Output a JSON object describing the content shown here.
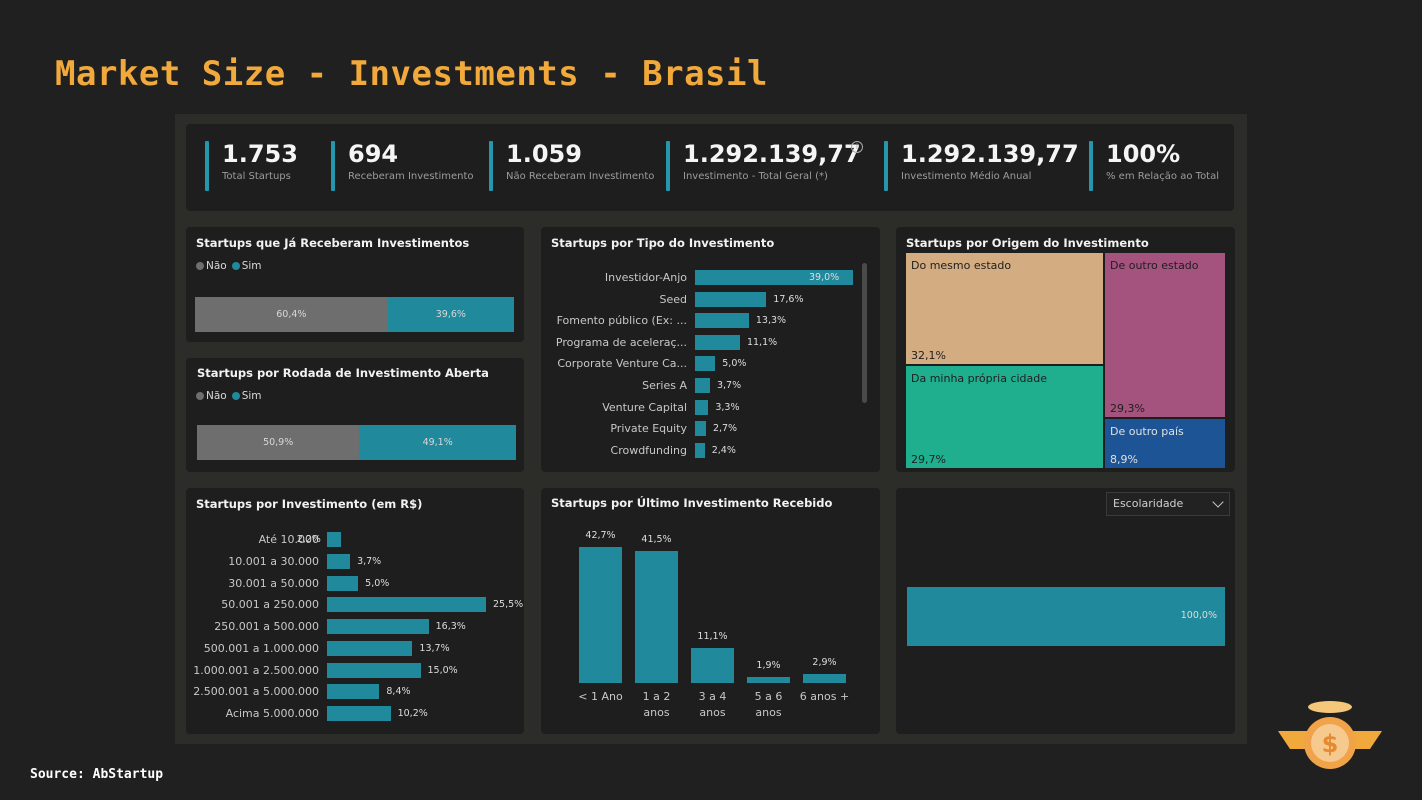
{
  "title": "Market Size - Investments - Brasil",
  "source": "Source: AbStartup",
  "colors": {
    "accent": "#20899c",
    "kpi_bar": "#2597ad",
    "title": "#f2a93b",
    "gray": "#6e6e6e"
  },
  "kpis": [
    {
      "value": "1.753",
      "label": "Total Startups"
    },
    {
      "value": "694",
      "label": "Receberam Investimento"
    },
    {
      "value": "1.059",
      "label": "Não Receberam Investimento"
    },
    {
      "value": "1.292.139,77",
      "label": "Investimento - Total Geral (*)",
      "info_icon": "i"
    },
    {
      "value": "1.292.139,77",
      "label": "Investimento Médio Anual"
    },
    {
      "value": "100%",
      "label": "% em Relação ao Total"
    }
  ],
  "received": {
    "title": "Startups que Já Receberam Investimentos",
    "legend": [
      "Não",
      "Sim"
    ],
    "segments": [
      {
        "label": "60,4%",
        "value": 60.4
      },
      {
        "label": "39,6%",
        "value": 39.6
      }
    ]
  },
  "open_round": {
    "title": "Startups por Rodada de Investimento Aberta",
    "legend": [
      "Não",
      "Sim"
    ],
    "segments": [
      {
        "label": "50,9%",
        "value": 50.9
      },
      {
        "label": "49,1%",
        "value": 49.1
      }
    ]
  },
  "type": {
    "title": "Startups por Tipo do Investimento",
    "rows": [
      {
        "label": "Investidor-Anjo",
        "value": 39.0,
        "display": "39,0%"
      },
      {
        "label": "Seed",
        "value": 17.6,
        "display": "17,6%"
      },
      {
        "label": "Fomento público (Ex: ...",
        "value": 13.3,
        "display": "13,3%"
      },
      {
        "label": "Programa de aceleraç...",
        "value": 11.1,
        "display": "11,1%"
      },
      {
        "label": "Corporate Venture Ca...",
        "value": 5.0,
        "display": "5,0%"
      },
      {
        "label": "Series A",
        "value": 3.7,
        "display": "3,7%"
      },
      {
        "label": "Venture Capital",
        "value": 3.3,
        "display": "3,3%"
      },
      {
        "label": "Private Equity",
        "value": 2.7,
        "display": "2,7%"
      },
      {
        "label": "Crowdfunding",
        "value": 2.4,
        "display": "2,4%"
      }
    ]
  },
  "origin": {
    "title": "Startups por Origem do Investimento",
    "tiles": [
      {
        "name": "Do mesmo estado",
        "value": "32,1%",
        "color": "#d4ac82"
      },
      {
        "name": "De outro estado",
        "value": "29,3%",
        "color": "#a3537e"
      },
      {
        "name": "Da minha própria cidade",
        "value": "29,7%",
        "color": "#1fae8e"
      },
      {
        "name": "De outro país",
        "value": "8,9%",
        "color": "#1c5496"
      }
    ]
  },
  "amount": {
    "title": "Startups por Investimento (em R$)",
    "rows": [
      {
        "label": "Até 10.000",
        "value": 2.2,
        "display": "2,2%"
      },
      {
        "label": "10.001 a 30.000",
        "value": 3.7,
        "display": "3,7%"
      },
      {
        "label": "30.001 a 50.000",
        "value": 5.0,
        "display": "5,0%"
      },
      {
        "label": "50.001 a 250.000",
        "value": 25.5,
        "display": "25,5%"
      },
      {
        "label": "250.001 a 500.000",
        "value": 16.3,
        "display": "16,3%"
      },
      {
        "label": "500.001 a 1.000.000",
        "value": 13.7,
        "display": "13,7%"
      },
      {
        "label": "1.000.001 a 2.500.000",
        "value": 15.0,
        "display": "15,0%"
      },
      {
        "label": "2.500.001 a 5.000.000",
        "value": 8.4,
        "display": "8,4%"
      },
      {
        "label": "Acima 5.000.000",
        "value": 10.2,
        "display": "10,2%"
      }
    ]
  },
  "last": {
    "title": "Startups por Último Investimento Recebido",
    "bars": [
      {
        "cat1": "< 1 Ano",
        "cat2": "",
        "value": 42.7,
        "display": "42,7%"
      },
      {
        "cat1": "1 a 2",
        "cat2": "anos",
        "value": 41.5,
        "display": "41,5%"
      },
      {
        "cat1": "3 a 4",
        "cat2": "anos",
        "value": 11.1,
        "display": "11,1%"
      },
      {
        "cat1": "5 a 6",
        "cat2": "anos",
        "value": 1.9,
        "display": "1,9%"
      },
      {
        "cat1": "6 anos +",
        "cat2": "",
        "value": 2.9,
        "display": "2,9%"
      }
    ]
  },
  "education": {
    "dropdown": "Escolaridade",
    "value": 100.0,
    "display": "100,0%"
  },
  "chart_data": [
    {
      "type": "bar",
      "title": "Startups que Já Receberam Investimentos",
      "categories": [
        "Não",
        "Sim"
      ],
      "values": [
        60.4,
        39.6
      ]
    },
    {
      "type": "bar",
      "title": "Startups por Rodada de Investimento Aberta",
      "categories": [
        "Não",
        "Sim"
      ],
      "values": [
        50.9,
        49.1
      ]
    },
    {
      "type": "bar",
      "title": "Startups por Tipo do Investimento",
      "categories": [
        "Investidor-Anjo",
        "Seed",
        "Fomento público (Ex: ...",
        "Programa de aceleraç...",
        "Corporate Venture Ca...",
        "Series A",
        "Venture Capital",
        "Private Equity",
        "Crowdfunding"
      ],
      "values": [
        39.0,
        17.6,
        13.3,
        11.1,
        5.0,
        3.7,
        3.3,
        2.7,
        2.4
      ]
    },
    {
      "type": "heatmap",
      "title": "Startups por Origem do Investimento",
      "categories": [
        "Do mesmo estado",
        "De outro estado",
        "Da minha própria cidade",
        "De outro país"
      ],
      "values": [
        32.1,
        29.3,
        29.7,
        8.9
      ]
    },
    {
      "type": "bar",
      "title": "Startups por Investimento (em R$)",
      "categories": [
        "Até 10.000",
        "10.001 a 30.000",
        "30.001 a 50.000",
        "50.001 a 250.000",
        "250.001 a 500.000",
        "500.001 a 1.000.000",
        "1.000.001 a 2.500.000",
        "2.500.001 a 5.000.000",
        "Acima 5.000.000"
      ],
      "values": [
        2.2,
        3.7,
        5.0,
        25.5,
        16.3,
        13.7,
        15.0,
        8.4,
        10.2
      ]
    },
    {
      "type": "bar",
      "title": "Startups por Último Investimento Recebido",
      "categories": [
        "< 1 Ano",
        "1 a 2 anos",
        "3 a 4 anos",
        "5 a 6 anos",
        "6 anos +"
      ],
      "values": [
        42.7,
        41.5,
        11.1,
        1.9,
        2.9
      ]
    },
    {
      "type": "bar",
      "title": "",
      "categories": [
        ""
      ],
      "values": [
        100.0
      ]
    }
  ]
}
